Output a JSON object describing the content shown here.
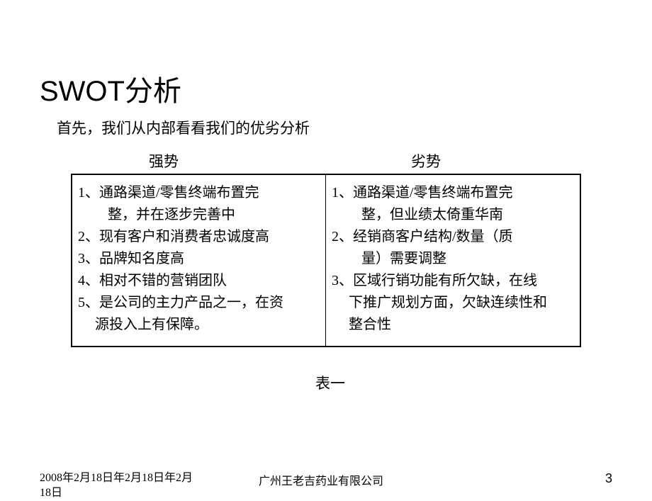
{
  "title": "SWOT分析",
  "subtitle": "首先，我们从内部看看我们的优劣分析",
  "headers": {
    "left": "强势",
    "right": "劣势"
  },
  "strengths": {
    "s1": "1、通路渠道/零售终端布置完",
    "s1b": "整，并在逐步完善中",
    "s2": "2、现有客户和消费者忠诚度高",
    "s3": "3、品牌知名度高",
    "s4": "4、相对不错的营销团队",
    "s5": "5、是公司的主力产品之一，在资",
    "s5b": "源投入上有保障。"
  },
  "weaknesses": {
    "w1": "1、通路渠道/零售终端布置完",
    "w1b": "整，但业绩太倚重华南",
    "w2": "2、经销商客户结构/数量（质",
    "w2b": "量）需要调整",
    "w3": "3、区域行销功能有所欠缺，在线",
    "w3b": "下推广规划方面，欠缺连续性和",
    "w3c": "整合性"
  },
  "table_caption": "表一",
  "footer": {
    "date": "2008年2月18日年2月18日年2月18日",
    "company": "广州王老吉药业有限公司",
    "page": "3"
  },
  "colors": {
    "background": "#ffffff",
    "text": "#000000",
    "border": "#000000"
  }
}
